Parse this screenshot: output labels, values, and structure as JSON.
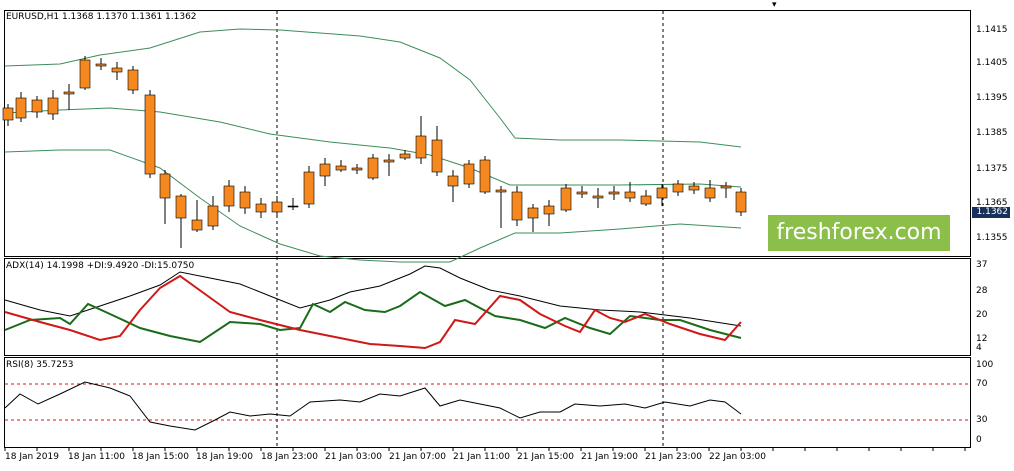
{
  "main": {
    "header": "EURUSD,H1  1.1368 1.1370 1.1361 1.1362",
    "price_axis": [
      "1.1415",
      "1.1405",
      "1.1395",
      "1.1385",
      "1.1375",
      "1.1365",
      "1.1355"
    ],
    "current_price": "1.1362",
    "watermark": "freshforex.com",
    "colors": {
      "bull": "#2db32d",
      "bear": "#f5891f",
      "band": "#3c8d5a"
    }
  },
  "adx": {
    "header": "ADX(14) 14.1998 +DI:9.4920 -DI:15.0750",
    "axis": [
      "37",
      "28",
      "20",
      "12",
      "4"
    ],
    "colors": {
      "adx": "#000000",
      "plus_di": "#1a6b1a",
      "minus_di": "#d01818"
    }
  },
  "rsi": {
    "header": "RSI(8) 35.7253",
    "axis": [
      "100",
      "70",
      "30",
      "0"
    ],
    "levels": [
      70,
      30
    ],
    "colors": {
      "line": "#000000",
      "level": "#d01818"
    }
  },
  "time_axis": [
    "18 Jan 2019",
    "18 Jan 11:00",
    "18 Jan 15:00",
    "18 Jan 19:00",
    "18 Jan 23:00",
    "21 Jan 03:00",
    "21 Jan 07:00",
    "21 Jan 11:00",
    "21 Jan 15:00",
    "21 Jan 19:00",
    "21 Jan 23:00",
    "22 Jan 03:00"
  ],
  "icons": {
    "menu": "chevron-down-icon"
  }
}
